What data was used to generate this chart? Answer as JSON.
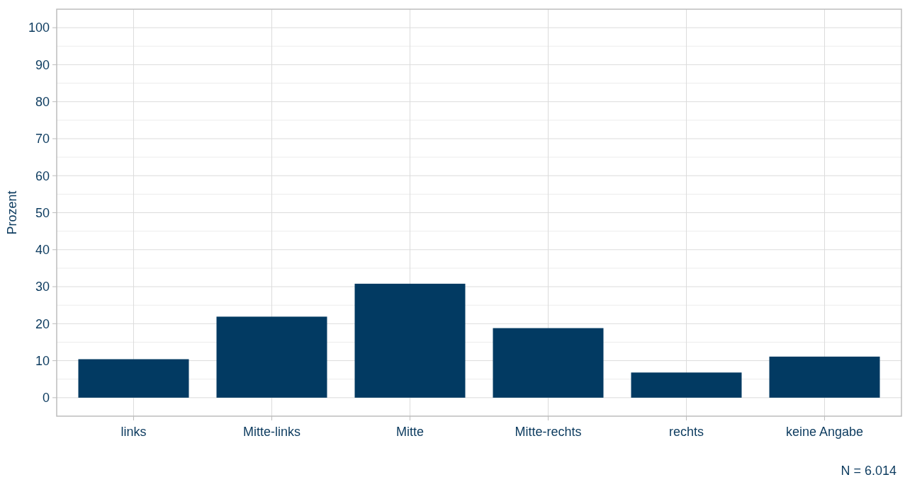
{
  "chart_data": {
    "type": "bar",
    "ylabel": "Prozent",
    "categories": [
      "links",
      "Mitte-links",
      "Mitte",
      "Mitte-rechts",
      "rechts",
      "keine Angabe"
    ],
    "values": [
      10.4,
      21.9,
      30.8,
      18.8,
      6.8,
      11.1
    ],
    "color": "#023a62",
    "ylim": [
      -5,
      105
    ],
    "yticks": [
      0,
      10,
      20,
      30,
      40,
      50,
      60,
      70,
      80,
      90,
      100
    ],
    "grid": true,
    "annotations": [
      "N = 6.014"
    ]
  }
}
